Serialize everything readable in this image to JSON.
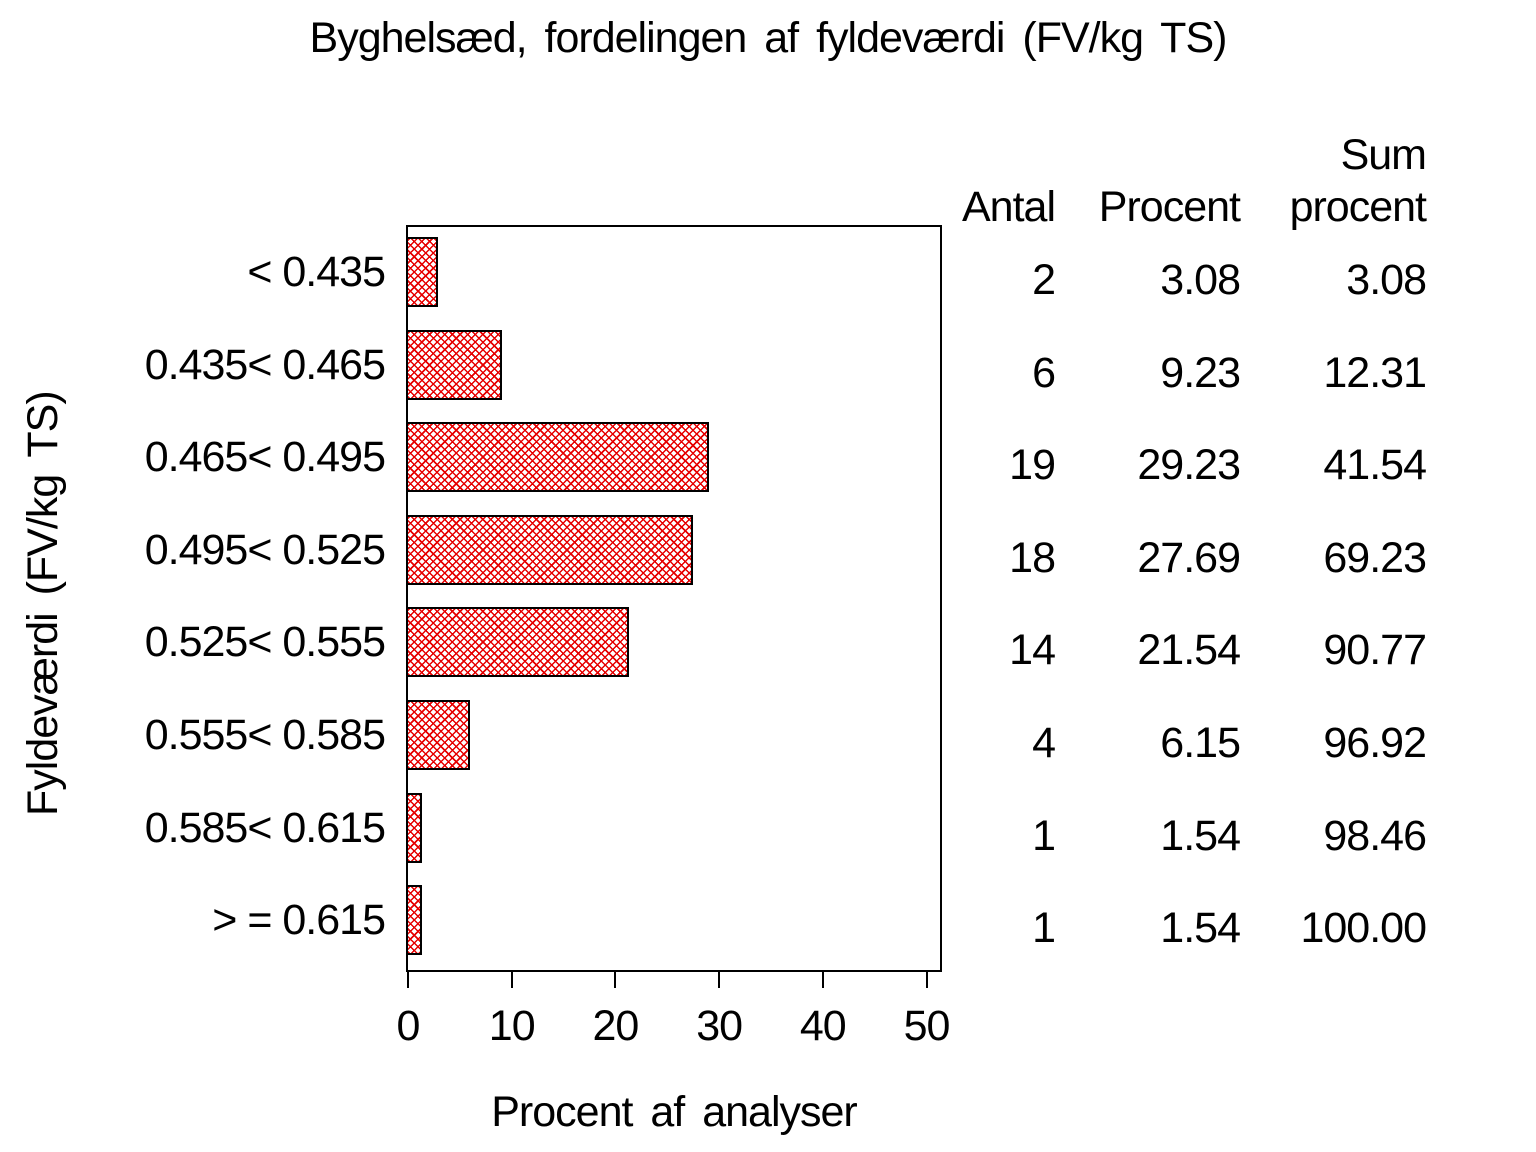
{
  "title": "Byghelsæd, fordelingen af fyldeværdi (FV/kg TS)",
  "table_headers": {
    "antal": "Antal",
    "procent": "Procent",
    "sum_line1": "Sum",
    "sum_line2": "procent"
  },
  "chart_data": {
    "type": "bar",
    "orientation": "horizontal",
    "title": "Byghelsæd, fordelingen af fyldeværdi (FV/kg TS)",
    "xlabel": "Procent af analyser",
    "ylabel": "Fyldeværdi (FV/kg TS)",
    "categories": [
      "< 0.435",
      "0.435< 0.465",
      "0.465< 0.495",
      "0.495< 0.525",
      "0.525< 0.555",
      "0.555< 0.585",
      "0.585< 0.615",
      "> = 0.615"
    ],
    "series": [
      {
        "name": "Procent af analyser",
        "values": [
          3.08,
          9.23,
          29.23,
          27.69,
          21.54,
          6.15,
          1.54,
          1.54
        ]
      }
    ],
    "x_ticks": [
      0,
      10,
      20,
      30,
      40,
      50
    ],
    "xlim": [
      0,
      51.3
    ],
    "grid": false,
    "legend": "none",
    "bar_color": "#e60000",
    "bar_style": "red diagonal crosshatch fill with black outline on white",
    "table": {
      "columns": [
        "Antal",
        "Procent",
        "Sum procent"
      ],
      "rows": [
        {
          "antal": "2",
          "procent": "3.08",
          "sum_procent": "3.08"
        },
        {
          "antal": "6",
          "procent": "9.23",
          "sum_procent": "12.31"
        },
        {
          "antal": "19",
          "procent": "29.23",
          "sum_procent": "41.54"
        },
        {
          "antal": "18",
          "procent": "27.69",
          "sum_procent": "69.23"
        },
        {
          "antal": "14",
          "procent": "21.54",
          "sum_procent": "90.77"
        },
        {
          "antal": "4",
          "procent": "6.15",
          "sum_procent": "96.92"
        },
        {
          "antal": "1",
          "procent": "1.54",
          "sum_procent": "98.46"
        },
        {
          "antal": "1",
          "procent": "1.54",
          "sum_procent": "100.00"
        }
      ]
    }
  }
}
